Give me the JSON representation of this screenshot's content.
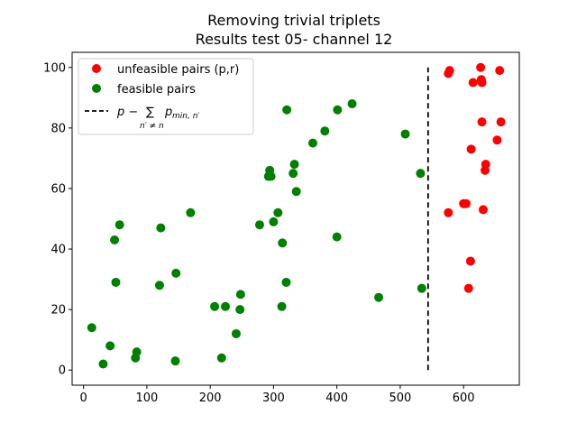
{
  "chart_data": {
    "type": "scatter",
    "title": [
      "Removing trivial triplets",
      "Results test 05- channel 12"
    ],
    "xlabel": "",
    "ylabel": "",
    "xlim": [
      -18,
      688
    ],
    "ylim": [
      -5,
      105
    ],
    "xticks": [
      0,
      100,
      200,
      300,
      400,
      500,
      600
    ],
    "yticks": [
      0,
      20,
      40,
      60,
      80,
      100
    ],
    "grid": false,
    "legend_position": "top-left",
    "series": [
      {
        "name": "unfeasible pairs (p,r)",
        "color": "#ff0000",
        "points": [
          [
            576,
            98
          ],
          [
            578,
            99
          ],
          [
            627,
            100
          ],
          [
            657,
            99
          ],
          [
            615,
            95
          ],
          [
            628,
            96
          ],
          [
            629,
            95
          ],
          [
            629,
            82
          ],
          [
            659,
            82
          ],
          [
            653,
            76
          ],
          [
            612,
            73
          ],
          [
            635,
            68
          ],
          [
            634,
            66
          ],
          [
            600,
            55
          ],
          [
            604,
            55
          ],
          [
            576,
            52
          ],
          [
            631,
            53
          ],
          [
            611,
            36
          ],
          [
            608,
            27
          ]
        ]
      },
      {
        "name": "feasible pairs",
        "color": "#008000",
        "points": [
          [
            424,
            88
          ],
          [
            321,
            86
          ],
          [
            401,
            86
          ],
          [
            381,
            79
          ],
          [
            508,
            78
          ],
          [
            362,
            75
          ],
          [
            333,
            68
          ],
          [
            294,
            66
          ],
          [
            292,
            64
          ],
          [
            296,
            64
          ],
          [
            331,
            65
          ],
          [
            532,
            65
          ],
          [
            336,
            59
          ],
          [
            169,
            52
          ],
          [
            307,
            52
          ],
          [
            57,
            48
          ],
          [
            122,
            47
          ],
          [
            278,
            48
          ],
          [
            300,
            49
          ],
          [
            49,
            43
          ],
          [
            314,
            42
          ],
          [
            400,
            44
          ],
          [
            146,
            32
          ],
          [
            51,
            29
          ],
          [
            120,
            28
          ],
          [
            320,
            29
          ],
          [
            534,
            27
          ],
          [
            248,
            25
          ],
          [
            466,
            24
          ],
          [
            207,
            21
          ],
          [
            224,
            21
          ],
          [
            247,
            20
          ],
          [
            313,
            21
          ],
          [
            13,
            14
          ],
          [
            241,
            12
          ],
          [
            42,
            8
          ],
          [
            84,
            6
          ],
          [
            82,
            4
          ],
          [
            218,
            4
          ],
          [
            31,
            2
          ],
          [
            145,
            3
          ]
        ]
      }
    ],
    "vline": {
      "x": 544,
      "y_range": [
        0,
        100
      ],
      "style": "dashed",
      "color": "#000000",
      "label_main": "p −",
      "label_sum": "∑",
      "label_sub_sum": "n′ ≠ n",
      "label_term": "p",
      "label_term_sub": "min, n′"
    }
  }
}
